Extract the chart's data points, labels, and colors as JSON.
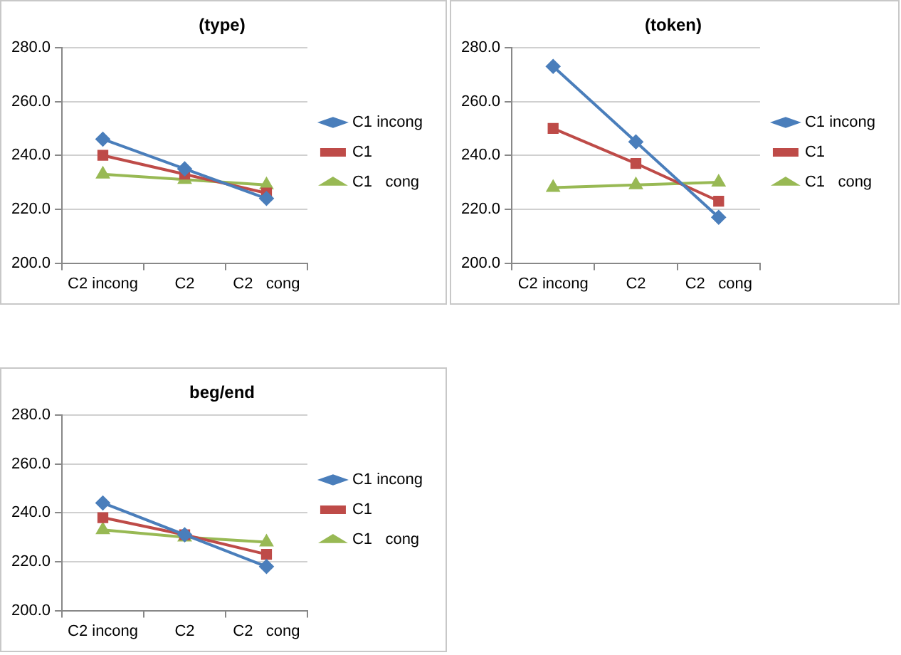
{
  "chart_data": [
    {
      "type": "line",
      "title": "(type)",
      "categories": [
        "C2 incong",
        "C2",
        "C2   cong"
      ],
      "series": [
        {
          "name": "C1 incong",
          "color": "#4a7ebb",
          "marker": "diamond",
          "values": [
            246,
            235,
            224
          ]
        },
        {
          "name": "C1",
          "color": "#be4b48",
          "marker": "square",
          "values": [
            240,
            233,
            226
          ]
        },
        {
          "name": "C1   cong",
          "color": "#98b954",
          "marker": "triangle",
          "values": [
            233,
            231,
            229
          ]
        }
      ],
      "ylim": [
        200,
        280
      ],
      "yticks": [
        {
          "value": 200,
          "label": "200.0"
        },
        {
          "value": 220,
          "label": "220.0"
        },
        {
          "value": 240,
          "label": "240.0"
        },
        {
          "value": 260,
          "label": "260.0"
        },
        {
          "value": 280,
          "label": "280.0"
        }
      ],
      "grid": "y",
      "legend": "right"
    },
    {
      "type": "line",
      "title": "(token)",
      "categories": [
        "C2 incong",
        "C2",
        "C2   cong"
      ],
      "series": [
        {
          "name": "C1 incong",
          "color": "#4a7ebb",
          "marker": "diamond",
          "values": [
            273,
            245,
            217
          ]
        },
        {
          "name": "C1",
          "color": "#be4b48",
          "marker": "square",
          "values": [
            250,
            237,
            223
          ]
        },
        {
          "name": "C1   cong",
          "color": "#98b954",
          "marker": "triangle",
          "values": [
            228,
            229,
            230
          ]
        }
      ],
      "ylim": [
        200,
        280
      ],
      "yticks": [
        {
          "value": 200,
          "label": "200.0"
        },
        {
          "value": 220,
          "label": "220.0"
        },
        {
          "value": 240,
          "label": "240.0"
        },
        {
          "value": 260,
          "label": "260.0"
        },
        {
          "value": 280,
          "label": "280.0"
        }
      ],
      "grid": "y",
      "legend": "right"
    },
    {
      "type": "line",
      "title": "beg/end",
      "categories": [
        "C2 incong",
        "C2",
        "C2   cong"
      ],
      "series": [
        {
          "name": "C1 incong",
          "color": "#4a7ebb",
          "marker": "diamond",
          "values": [
            244,
            231,
            218
          ]
        },
        {
          "name": "C1",
          "color": "#be4b48",
          "marker": "square",
          "values": [
            238,
            231,
            223
          ]
        },
        {
          "name": "C1   cong",
          "color": "#98b954",
          "marker": "triangle",
          "values": [
            233,
            230,
            228
          ]
        }
      ],
      "ylim": [
        200,
        280
      ],
      "yticks": [
        {
          "value": 200,
          "label": "200.0"
        },
        {
          "value": 220,
          "label": "220.0"
        },
        {
          "value": 240,
          "label": "240.0"
        },
        {
          "value": 260,
          "label": "260.0"
        },
        {
          "value": 280,
          "label": "280.0"
        }
      ],
      "grid": "y",
      "legend": "right"
    }
  ]
}
